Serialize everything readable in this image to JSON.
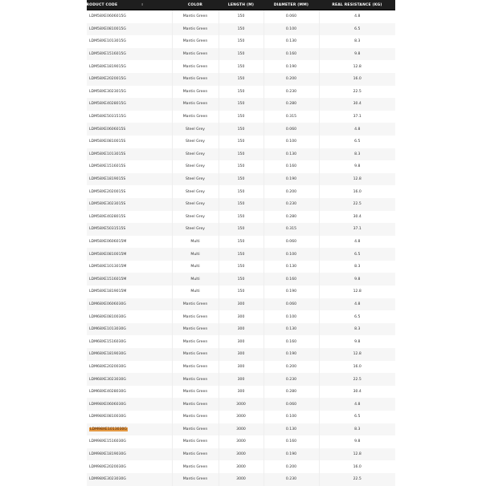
{
  "table": {
    "headers": [
      "PRODUCT CODE",
      "COLOR",
      "LENGTH (M)",
      "DIAMETER (MM)",
      "REAL RESISTANCE (KG)"
    ],
    "highlight_color": "#e59a45",
    "rows": [
      [
        "LDM58XE0606015G",
        "Mantis Green",
        "150",
        "0.060",
        "4.8"
      ],
      [
        "LDM58XE0810015G",
        "Mantis Green",
        "150",
        "0.100",
        "6.5"
      ],
      [
        "LDM58XE1013015G",
        "Mantis Green",
        "150",
        "0.130",
        "8.3"
      ],
      [
        "LDM58XE1516015G",
        "Mantis Green",
        "150",
        "0.160",
        "9.8"
      ],
      [
        "LDM58XE1819015G",
        "Mantis Green",
        "150",
        "0.190",
        "12.8"
      ],
      [
        "LDM58XE2020015G",
        "Mantis Green",
        "150",
        "0.200",
        "16.0"
      ],
      [
        "LDM58XE3023015G",
        "Mantis Green",
        "150",
        "0.230",
        "22.5"
      ],
      [
        "LDM58XE4028015G",
        "Mantis Green",
        "150",
        "0.280",
        "30.4"
      ],
      [
        "LDM58XE5031515G",
        "Mantis Green",
        "150",
        "0.315",
        "37.1"
      ],
      [
        "LDM58XE0606015S",
        "Steel Grey",
        "150",
        "0.060",
        "4.8"
      ],
      [
        "LDM58XE0810015S",
        "Steel Grey",
        "150",
        "0.100",
        "6.5"
      ],
      [
        "LDM58XE1013015S",
        "Steel Grey",
        "150",
        "0.130",
        "8.3"
      ],
      [
        "LDM58XE1516015S",
        "Steel Grey",
        "150",
        "0.160",
        "9.8"
      ],
      [
        "LDM58XE1819015S",
        "Steel Grey",
        "150",
        "0.190",
        "12.8"
      ],
      [
        "LDM58XE2020015S",
        "Steel Grey",
        "150",
        "0.200",
        "16.0"
      ],
      [
        "LDM58XE3023015S",
        "Steel Grey",
        "150",
        "0.230",
        "22.5"
      ],
      [
        "LDM58XE4028015S",
        "Steel Grey",
        "150",
        "0.280",
        "30.4"
      ],
      [
        "LDM58XE5031515S",
        "Steel Grey",
        "150",
        "0.315",
        "37.1"
      ],
      [
        "LDM58XE0606015M",
        "Multi",
        "150",
        "0.060",
        "4.8"
      ],
      [
        "LDM58XE0810015M",
        "Multi",
        "150",
        "0.100",
        "6.5"
      ],
      [
        "LDM58XE1013015M",
        "Multi",
        "150",
        "0.130",
        "8.3"
      ],
      [
        "LDM58XE1516015M",
        "Multi",
        "150",
        "0.160",
        "9.8"
      ],
      [
        "LDM58XE1819015M",
        "Multi",
        "150",
        "0.190",
        "12.8"
      ],
      [
        "LDM68XE0606030G",
        "Mantis Green",
        "300",
        "0.060",
        "4.8"
      ],
      [
        "LDM68XE0810030G",
        "Mantis Green",
        "300",
        "0.100",
        "6.5"
      ],
      [
        "LDM68XE1013030G",
        "Mantis Green",
        "300",
        "0.130",
        "8.3"
      ],
      [
        "LDM68XE1516030G",
        "Mantis Green",
        "300",
        "0.160",
        "9.8"
      ],
      [
        "LDM68XE1819030G",
        "Mantis Green",
        "300",
        "0.190",
        "12.8"
      ],
      [
        "LDM68XE2020030G",
        "Mantis Green",
        "300",
        "0.200",
        "16.0"
      ],
      [
        "LDM68XE3023030G",
        "Mantis Green",
        "300",
        "0.230",
        "22.5"
      ],
      [
        "LDM68XE4028030G",
        "Mantis Green",
        "300",
        "0.280",
        "30.4"
      ],
      [
        "LDM98XE0606030G",
        "Mantis Green",
        "3000",
        "0.060",
        "4.8"
      ],
      [
        "LDM98XE0810030G",
        "Mantis Green",
        "3000",
        "0.100",
        "6.5"
      ],
      [
        "LDM98XE1013030G",
        "Mantis Green",
        "3000",
        "0.130",
        "8.3"
      ],
      [
        "LDM98XE1516030G",
        "Mantis Green",
        "3000",
        "0.160",
        "9.8"
      ],
      [
        "LDM98XE1819030G",
        "Mantis Green",
        "3000",
        "0.190",
        "12.8"
      ],
      [
        "LDM98XE2020030G",
        "Mantis Green",
        "3000",
        "0.200",
        "16.0"
      ],
      [
        "LDM98XE3023030G",
        "Mantis Green",
        "3000",
        "0.230",
        "22.5"
      ]
    ],
    "highlighted_row_index": 33
  }
}
